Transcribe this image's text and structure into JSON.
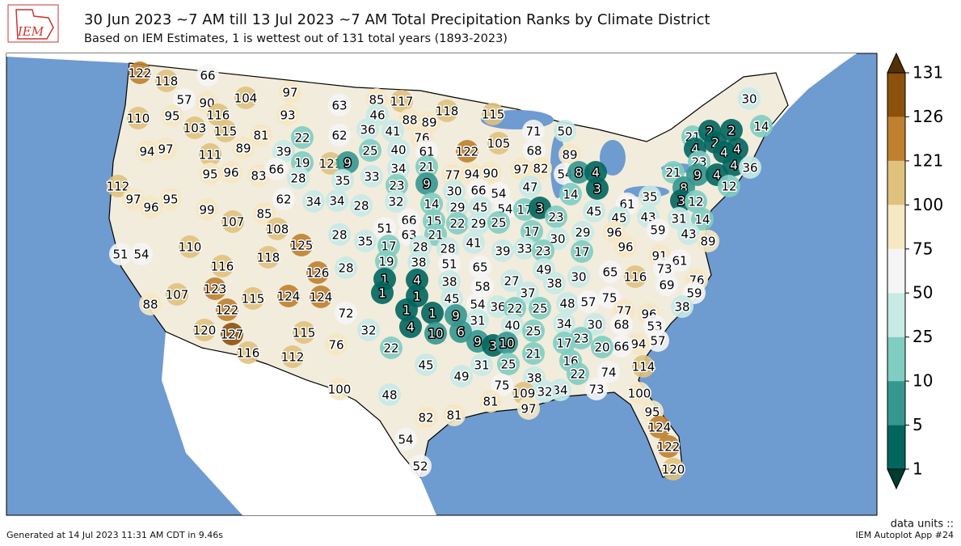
{
  "header": {
    "logo": "IEM",
    "title": "30 Jun 2023 ~7 AM till 13 Jul 2023 ~7 AM Total Precipitation Ranks by Climate District",
    "subtitle": "Based on IEM Estimates, 1 is wettest out of 131 total years (1893-2023)"
  },
  "colorbar": {
    "ticks": [
      1,
      5,
      10,
      25,
      50,
      75,
      100,
      121,
      126,
      131
    ],
    "colors": [
      "#01665e",
      "#35978f",
      "#80cdc1",
      "#c7eae5",
      "#f5f5f5",
      "#f6e8c3",
      "#dfc27d",
      "#bf812d",
      "#8c510a"
    ],
    "under_color": "#003c30",
    "over_color": "#543005"
  },
  "districts": [
    122,
    118,
    66,
    57,
    90,
    104,
    97,
    63,
    85,
    117,
    110,
    95,
    116,
    93,
    46,
    88,
    89,
    118,
    115,
    103,
    115,
    81,
    22,
    62,
    36,
    41,
    76,
    71,
    50,
    94,
    97,
    89,
    39,
    25,
    40,
    61,
    122,
    105,
    68,
    111,
    19,
    121,
    9,
    34,
    21,
    89,
    30,
    14,
    21,
    2,
    2,
    4,
    2,
    4,
    4,
    95,
    96,
    83,
    66,
    28,
    35,
    33,
    97,
    82,
    77,
    94,
    90,
    23,
    9,
    54,
    8,
    4,
    21,
    23,
    9,
    4,
    4,
    36,
    112,
    97,
    96,
    95,
    99,
    62,
    34,
    34,
    28,
    32,
    14,
    30,
    66,
    54,
    47,
    14,
    3,
    12,
    29,
    45,
    54,
    17,
    3,
    23,
    45,
    61,
    35,
    8,
    3,
    12,
    107,
    85,
    43,
    45,
    31,
    14,
    51,
    66,
    63,
    15,
    22,
    29,
    25,
    108,
    28,
    35,
    21,
    17,
    30,
    29,
    96,
    59,
    43,
    89,
    110,
    125,
    17,
    28,
    28,
    41,
    39,
    33,
    23,
    17,
    96,
    118,
    51,
    54,
    91,
    61,
    73,
    19,
    38,
    51,
    116,
    126,
    28,
    65,
    49,
    65,
    116,
    69,
    76,
    1,
    4,
    38,
    58,
    27,
    38,
    30,
    123,
    115,
    124,
    124,
    72,
    107,
    1,
    1,
    45,
    37,
    75,
    48,
    57,
    59,
    88,
    122,
    54,
    36,
    22,
    25,
    77,
    96,
    38,
    1,
    1,
    9,
    31,
    40,
    34,
    30,
    68,
    53,
    120,
    127,
    115,
    32,
    4,
    10,
    6,
    25,
    23,
    57,
    94,
    66,
    20,
    17,
    9,
    3,
    10,
    76,
    116,
    112,
    22,
    21,
    16,
    45,
    31,
    25,
    114,
    49,
    74,
    22,
    38,
    100,
    75,
    48,
    73,
    34,
    32,
    109,
    100,
    81,
    97,
    95,
    82,
    81,
    124,
    54,
    122,
    52,
    120
  ],
  "footer": {
    "generated": "Generated at 14 Jul 2023 11:31 AM CDT in 9.46s",
    "units": "data units ::",
    "app": "IEM Autoplot App #24"
  }
}
